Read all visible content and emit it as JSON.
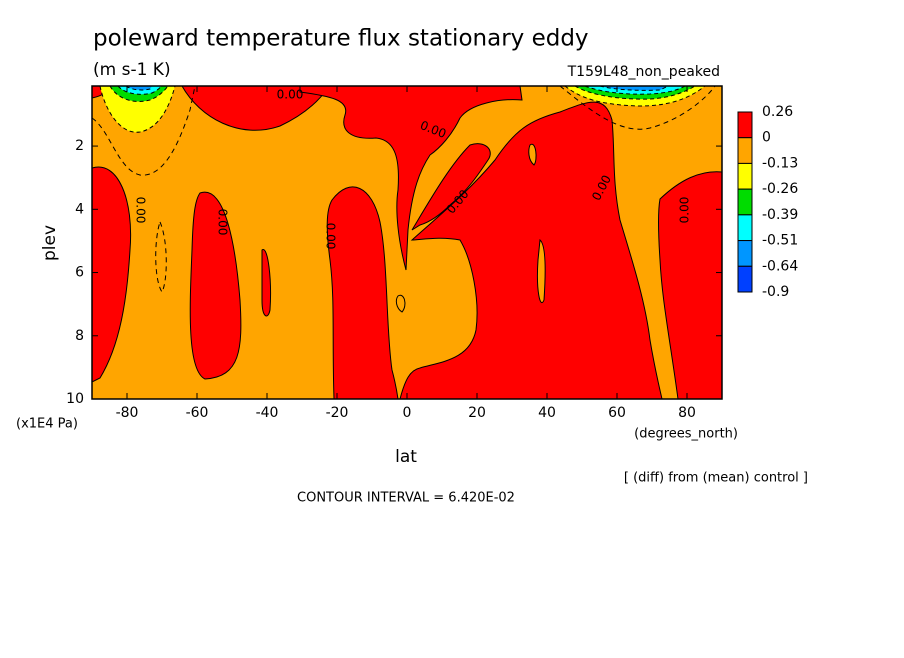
{
  "chart_data": {
    "type": "contour",
    "title": "poleward temperature flux stationary eddy",
    "subtitle": "(m s-1 K)",
    "run_label": "T159L48_non_peaked",
    "xlabel": "lat",
    "x_unit_label": "(degrees_north)",
    "ylabel": "plev",
    "y_unit_label": "(x1E4 Pa)",
    "note": "[ (diff) from (mean) control ]",
    "contour_interval": "CONTOUR INTERVAL = 6.420E-02",
    "xlim": [
      -90,
      90
    ],
    "xticks": [
      -80,
      -60,
      -40,
      -20,
      0,
      20,
      40,
      60,
      80
    ],
    "ylim": [
      10,
      0.1
    ],
    "yticks": [
      2,
      4,
      6,
      8,
      10
    ],
    "levels": {
      "values": [
        0.26,
        0,
        -0.13,
        -0.26,
        -0.39,
        -0.51,
        -0.64,
        -0.9
      ],
      "colors": [
        "#ff0000",
        "#ffa500",
        "#ffff00",
        "#00dc00",
        "#00ffff",
        "#0096ff",
        "#0040ff"
      ]
    },
    "contour_labels": [
      "0.00",
      "0.00",
      "0.00",
      "0.00",
      "0.00",
      "0.00",
      "0.00",
      "0.00"
    ]
  }
}
